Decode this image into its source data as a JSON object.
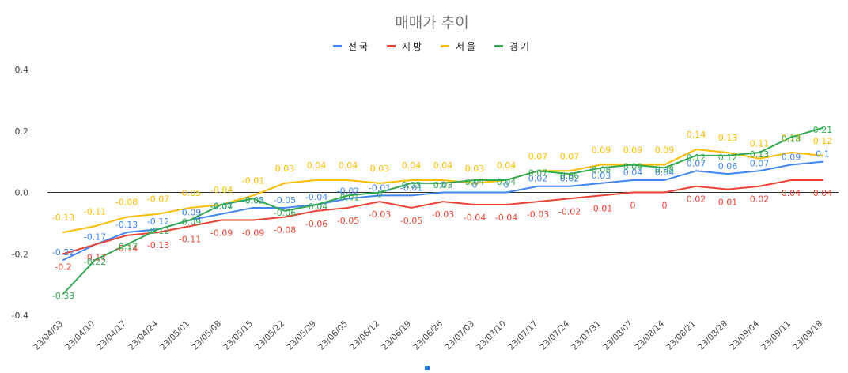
{
  "chart_data": {
    "type": "line",
    "title": "매매가 추이",
    "xlabel": "",
    "ylabel": "",
    "ylim": [
      -0.4,
      0.4
    ],
    "yticks": [
      0.4,
      0.2,
      0.0,
      -0.2,
      -0.4
    ],
    "ytick_labels": [
      "0.4",
      "0.2",
      "0.0",
      "-0.2",
      "-0.4"
    ],
    "legend_position": "top-center",
    "grid": false,
    "categories": [
      "23/04/03",
      "23/04/10",
      "23/04/17",
      "23/04/24",
      "23/05/01",
      "23/05/08",
      "23/05/15",
      "23/05/22",
      "23/05/29",
      "23/06/05",
      "23/06/12",
      "23/06/19",
      "23/06/26",
      "23/07/03",
      "23/07/10",
      "23/07/17",
      "23/07/24",
      "23/07/31",
      "23/08/07",
      "23/08/14",
      "23/08/21",
      "23/08/28",
      "23/09/04",
      "23/09/11",
      "23/09/18"
    ],
    "series": [
      {
        "name": "전국",
        "color": "#4285f4",
        "values": [
          -0.22,
          -0.17,
          -0.13,
          -0.12,
          -0.09,
          -0.07,
          -0.05,
          -0.05,
          -0.04,
          -0.02,
          -0.01,
          -0.01,
          0,
          0,
          0,
          0.02,
          0.02,
          0.03,
          0.04,
          0.04,
          0.07,
          0.06,
          0.07,
          0.09,
          0.1
        ],
        "labels": [
          "-0.22",
          "-0.17",
          "-0.13",
          "-0.12",
          "-0.09",
          "-0.07",
          "-0.05",
          "-0.05",
          "-0.04",
          "-0.02",
          "-0.01",
          "-0.01",
          "0",
          "0",
          "0",
          "0.02",
          "0.02",
          "0.03",
          "0.04",
          "0.04",
          "0.07",
          "0.06",
          "0.07",
          "0.09",
          "0.1"
        ]
      },
      {
        "name": "지방",
        "color": "#ea4335",
        "values": [
          -0.2,
          -0.17,
          -0.14,
          -0.13,
          -0.11,
          -0.09,
          -0.09,
          -0.08,
          -0.06,
          -0.05,
          -0.03,
          -0.05,
          -0.03,
          -0.04,
          -0.04,
          -0.03,
          -0.02,
          -0.01,
          0,
          0,
          0.02,
          0.01,
          0.02,
          0.04,
          0.04
        ],
        "labels": [
          "-0.2",
          "-0.17",
          "-0.14",
          "-0.13",
          "-0.11",
          "-0.09",
          "-0.09",
          "-0.08",
          "-0.06",
          "-0.05",
          "-0.03",
          "-0.05",
          "-0.03",
          "-0.04",
          "-0.04",
          "-0.03",
          "-0.02",
          "-0.01",
          "0",
          "0",
          "0.02",
          "0.01",
          "0.02",
          "0.04",
          "0.04"
        ]
      },
      {
        "name": "서울",
        "color": "#fbbc04",
        "values": [
          -0.13,
          -0.11,
          -0.08,
          -0.07,
          -0.05,
          -0.04,
          -0.01,
          0.03,
          0.04,
          0.04,
          0.03,
          0.04,
          0.04,
          0.03,
          0.04,
          0.07,
          0.07,
          0.09,
          0.09,
          0.09,
          0.14,
          0.13,
          0.11,
          0.13,
          0.12
        ],
        "labels": [
          "-0.13",
          "-0.11",
          "-0.08",
          "-0.07",
          "-0.05",
          "-0.04",
          "-0.01",
          "0.03",
          "0.04",
          "0.04",
          "0.03",
          "0.04",
          "0.04",
          "0.03",
          "0.04",
          "0.07",
          "0.07",
          "0.09",
          "0.09",
          "0.09",
          "0.14",
          "0.13",
          "0.11",
          "0.13",
          "0.12"
        ]
      },
      {
        "name": "경기",
        "color": "#34a853",
        "values": [
          -0.33,
          -0.22,
          -0.17,
          -0.12,
          -0.09,
          -0.04,
          -0.02,
          -0.06,
          -0.04,
          -0.01,
          0,
          0.03,
          0.03,
          0.04,
          0.04,
          0.07,
          0.06,
          0.08,
          0.09,
          0.08,
          0.12,
          0.12,
          0.13,
          0.18,
          0.21
        ],
        "labels": [
          "-0.33",
          "-0.22",
          "-0.17",
          "-0.12",
          "-0.09",
          "-0.04",
          "-0.02",
          "-0.06",
          "-0.04",
          "-0.01",
          "0",
          "0.03",
          "0.03",
          "0.04",
          "0.04",
          "0.07",
          "0.06",
          "0.08",
          "0.09",
          "0.08",
          "0.12",
          "0.12",
          "0.13",
          "0.18",
          "0.21"
        ]
      }
    ]
  }
}
